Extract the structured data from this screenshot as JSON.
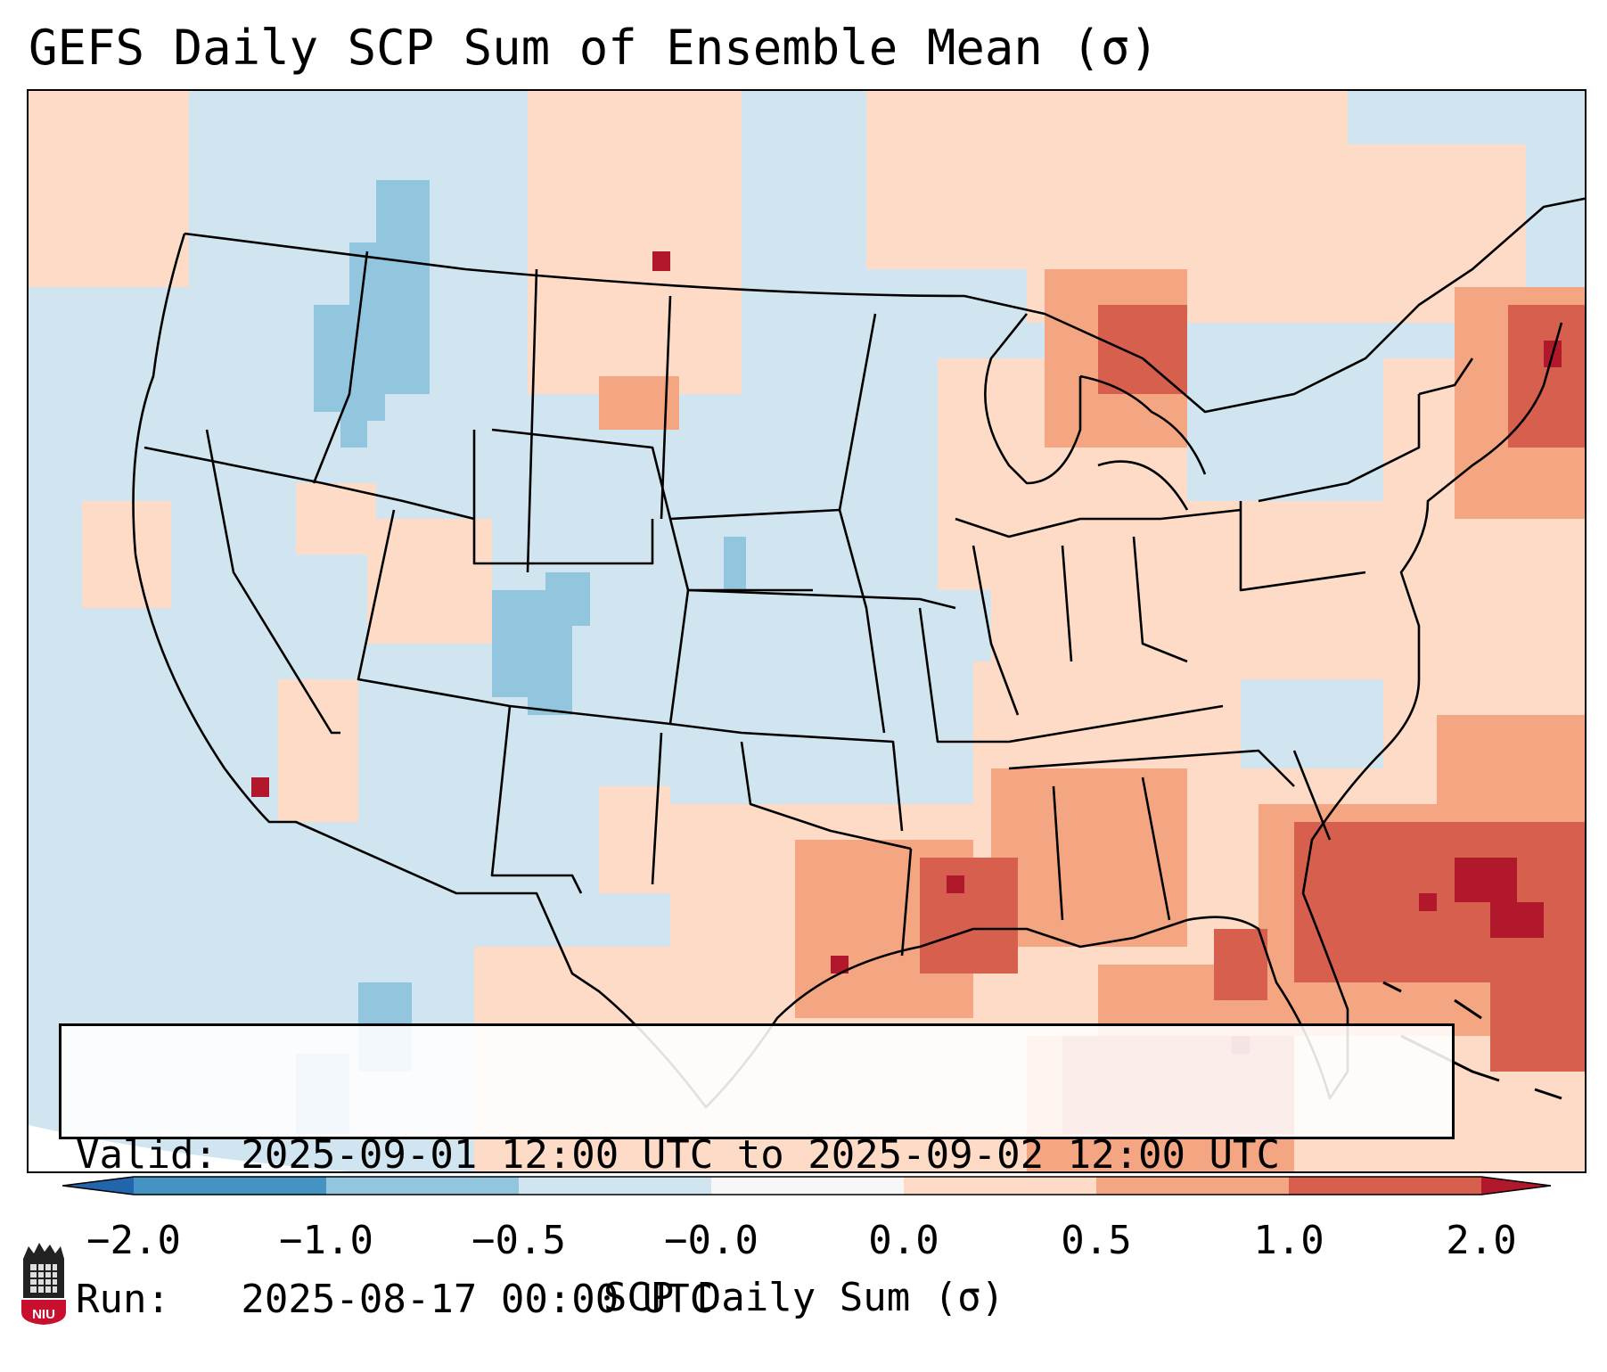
{
  "title": "GEFS Daily SCP Sum of Ensemble Mean (σ)",
  "info": {
    "valid": "Valid: 2025-09-01 12:00 UTC to 2025-09-02 12:00 UTC",
    "run": "Run:   2025-08-17 00:00 UTC"
  },
  "colorbar": {
    "label": "SCP Daily Sum (σ)",
    "ticks": [
      "−2.0",
      "−1.0",
      "−0.5",
      "−0.0",
      "0.0",
      "0.5",
      "1.0",
      "2.0"
    ],
    "colors": [
      "#2166ac",
      "#4393c3",
      "#92c5de",
      "#d1e5f0",
      "#f7f7f7",
      "#fddbc7",
      "#f4a582",
      "#d6604d",
      "#b2182b"
    ]
  },
  "map": {
    "background_color": "#d1e5f0",
    "anomaly_colors": {
      "very_low": "#92c5de",
      "low": "#d1e5f0",
      "slight_high": "#fddbc7",
      "high": "#f4a582",
      "very_high": "#d6604d",
      "extreme": "#b2182b"
    },
    "boundary_color": "#000000"
  },
  "logo": {
    "text": "NIU",
    "colors": {
      "shield": "#c8102e",
      "tower": "#222222"
    }
  }
}
